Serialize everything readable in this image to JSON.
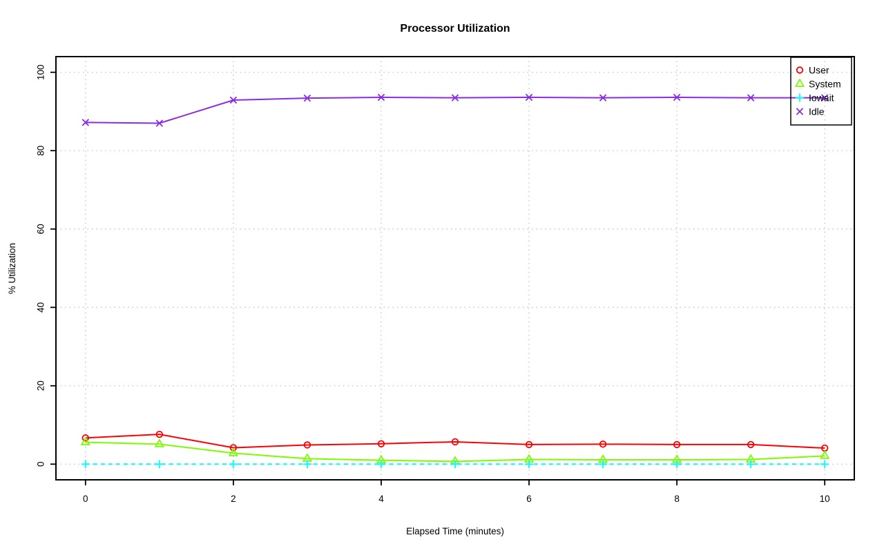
{
  "page": {
    "background": "#ffffff"
  },
  "chart_data": {
    "type": "line",
    "title": "Processor Utilization",
    "xlabel": "Elapsed Time (minutes)",
    "ylabel": "% Utilization",
    "x": [
      0,
      1,
      2,
      3,
      4,
      5,
      6,
      7,
      8,
      9,
      10
    ],
    "xlim": [
      0,
      10
    ],
    "ylim": [
      0,
      100
    ],
    "xticks": [
      "0",
      "2",
      "4",
      "6",
      "8",
      "10"
    ],
    "xtick_values": [
      0,
      2,
      4,
      6,
      8,
      10
    ],
    "yticks": [
      "0",
      "20",
      "40",
      "60",
      "80",
      "100"
    ],
    "ytick_values": [
      0,
      20,
      40,
      60,
      80,
      100
    ],
    "grid": {
      "enabled": true,
      "style": "dotted",
      "color": "#c6c6c6"
    },
    "legend": {
      "position": "top-right",
      "entries": [
        "User",
        "System",
        "Iowait",
        "Idle"
      ]
    },
    "series": [
      {
        "name": "User",
        "color": "#ff0000",
        "marker": "circle",
        "linestyle": "solid",
        "values": [
          6.7,
          7.6,
          4.2,
          4.9,
          5.2,
          5.7,
          5.0,
          5.1,
          5.0,
          5.0,
          4.1
        ]
      },
      {
        "name": "System",
        "color": "#7cfc00",
        "marker": "triangle",
        "linestyle": "solid",
        "values": [
          5.6,
          5.1,
          2.8,
          1.4,
          1.0,
          0.7,
          1.2,
          1.1,
          1.1,
          1.2,
          2.1
        ]
      },
      {
        "name": "Iowait",
        "color": "#00ffff",
        "marker": "plus",
        "linestyle": "dashed",
        "values": [
          0,
          0,
          0,
          0,
          0,
          0,
          0,
          0,
          0,
          0,
          0
        ]
      },
      {
        "name": "Idle",
        "color": "#8a2be2",
        "marker": "x",
        "linestyle": "solid",
        "values": [
          87.2,
          87.0,
          92.9,
          93.4,
          93.6,
          93.5,
          93.6,
          93.5,
          93.6,
          93.5,
          93.5
        ]
      }
    ]
  }
}
